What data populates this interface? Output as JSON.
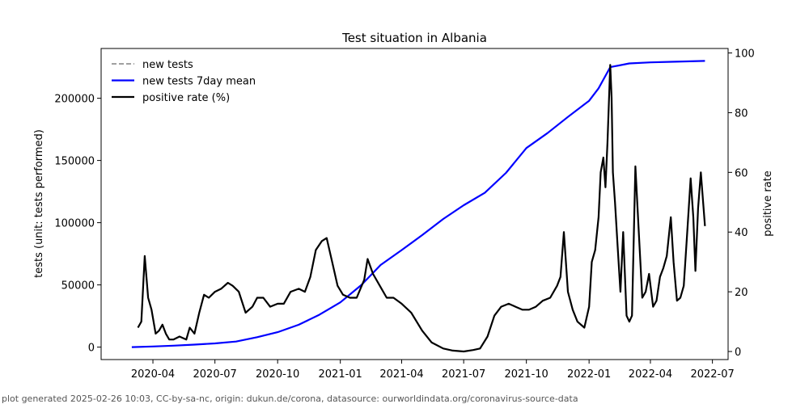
{
  "footer": "plot generated 2025-02-26 10:03, CC-by-sa-nc, origin: dukun.de/corona, datasource: ourworldindata.org/coronavirus-source-data",
  "chart_data": {
    "type": "line",
    "title": "Test situation in Albania",
    "ylabel": "tests (unit: tests performed)",
    "y2label": "positive rate",
    "ylim": [
      -10000,
      240000
    ],
    "y2lim": [
      -2.7,
      101.5
    ],
    "xlim": [
      "2020-01-16",
      "2022-07-24"
    ],
    "x_ticks": [
      "2020-04",
      "2020-07",
      "2020-10",
      "2021-01",
      "2021-04",
      "2021-07",
      "2021-10",
      "2022-01",
      "2022-04",
      "2022-07"
    ],
    "x_tick_dates": [
      "2020-04-01",
      "2020-07-01",
      "2020-10-01",
      "2021-01-01",
      "2021-04-01",
      "2021-07-01",
      "2021-10-01",
      "2022-01-01",
      "2022-04-01",
      "2022-07-01"
    ],
    "y_ticks": [
      0,
      50000,
      100000,
      150000,
      200000
    ],
    "y_tick_labels": [
      "0",
      "50000",
      "100000",
      "150000",
      "200000"
    ],
    "y2_ticks": [
      0,
      20,
      40,
      60,
      80,
      100
    ],
    "y2_tick_labels": [
      "0",
      "20",
      "40",
      "60",
      "80",
      "100"
    ],
    "legend_placement": "top-left",
    "grid": false,
    "series": [
      {
        "name": "new tests",
        "axis": "left",
        "color": "#808080",
        "style": "dashed",
        "x": [],
        "y": []
      },
      {
        "name": "new tests 7day mean",
        "axis": "left",
        "color": "#0000ff",
        "style": "solid",
        "x": [
          "2020-03-01",
          "2020-04-01",
          "2020-05-01",
          "2020-06-01",
          "2020-07-01",
          "2020-08-01",
          "2020-09-01",
          "2020-10-01",
          "2020-11-01",
          "2020-12-01",
          "2021-01-01",
          "2021-02-01",
          "2021-03-01",
          "2021-04-01",
          "2021-05-01",
          "2021-06-01",
          "2021-07-01",
          "2021-08-01",
          "2021-09-01",
          "2021-10-01",
          "2021-11-01",
          "2021-12-01",
          "2022-01-01",
          "2022-01-15",
          "2022-02-01",
          "2022-03-01",
          "2022-04-01",
          "2022-05-01",
          "2022-06-20"
        ],
        "y": [
          0,
          500,
          1200,
          2000,
          3000,
          4500,
          8000,
          12000,
          18000,
          26000,
          36000,
          50000,
          66000,
          78000,
          90000,
          103000,
          114000,
          124000,
          140000,
          160000,
          172000,
          185000,
          198000,
          208000,
          225000,
          228000,
          228800,
          229300,
          230000
        ]
      },
      {
        "name": "positive rate (%)",
        "axis": "right",
        "color": "#000000",
        "style": "solid",
        "x": [
          "2020-03-10",
          "2020-03-15",
          "2020-03-20",
          "2020-03-25",
          "2020-03-30",
          "2020-04-05",
          "2020-04-10",
          "2020-04-15",
          "2020-04-20",
          "2020-04-25",
          "2020-05-01",
          "2020-05-10",
          "2020-05-20",
          "2020-05-25",
          "2020-06-01",
          "2020-06-08",
          "2020-06-15",
          "2020-06-22",
          "2020-07-01",
          "2020-07-10",
          "2020-07-20",
          "2020-07-27",
          "2020-08-05",
          "2020-08-15",
          "2020-08-25",
          "2020-09-01",
          "2020-09-10",
          "2020-09-20",
          "2020-10-01",
          "2020-10-10",
          "2020-10-20",
          "2020-11-01",
          "2020-11-10",
          "2020-11-18",
          "2020-11-26",
          "2020-12-05",
          "2020-12-12",
          "2020-12-20",
          "2020-12-28",
          "2021-01-05",
          "2021-01-15",
          "2021-01-25",
          "2021-02-05",
          "2021-02-10",
          "2021-02-18",
          "2021-02-28",
          "2021-03-10",
          "2021-03-20",
          "2021-04-01",
          "2021-04-15",
          "2021-05-01",
          "2021-05-15",
          "2021-06-01",
          "2021-06-15",
          "2021-07-01",
          "2021-07-15",
          "2021-07-25",
          "2021-08-05",
          "2021-08-15",
          "2021-08-25",
          "2021-09-05",
          "2021-09-15",
          "2021-09-25",
          "2021-10-05",
          "2021-10-15",
          "2021-10-25",
          "2021-11-05",
          "2021-11-15",
          "2021-11-20",
          "2021-11-25",
          "2021-12-01",
          "2021-12-08",
          "2021-12-15",
          "2021-12-25",
          "2022-01-01",
          "2022-01-05",
          "2022-01-10",
          "2022-01-15",
          "2022-01-18",
          "2022-01-22",
          "2022-01-25",
          "2022-01-28",
          "2022-02-01",
          "2022-02-03",
          "2022-02-05",
          "2022-02-08",
          "2022-02-12",
          "2022-02-16",
          "2022-02-20",
          "2022-02-25",
          "2022-03-01",
          "2022-03-05",
          "2022-03-10",
          "2022-03-15",
          "2022-03-20",
          "2022-03-25",
          "2022-03-30",
          "2022-04-05",
          "2022-04-10",
          "2022-04-15",
          "2022-04-20",
          "2022-04-25",
          "2022-05-01",
          "2022-05-05",
          "2022-05-10",
          "2022-05-15",
          "2022-05-20",
          "2022-05-25",
          "2022-05-30",
          "2022-06-03",
          "2022-06-06",
          "2022-06-10",
          "2022-06-14",
          "2022-06-18",
          "2022-06-20"
        ],
        "y": [
          8,
          10,
          32,
          18,
          14,
          6,
          7,
          9,
          6,
          4,
          4,
          5,
          4,
          8,
          6,
          13,
          19,
          18,
          20,
          21,
          23,
          22,
          20,
          13,
          15,
          18,
          18,
          15,
          16,
          16,
          20,
          21,
          20,
          25,
          34,
          37,
          38,
          30,
          22,
          19,
          18,
          18,
          24,
          31,
          26,
          22,
          18,
          18,
          16,
          13,
          7,
          3,
          1,
          0.3,
          0,
          0.5,
          1,
          5,
          12,
          15,
          16,
          15,
          14,
          14,
          15,
          17,
          18,
          22,
          25,
          40,
          20,
          14,
          10,
          8,
          15,
          30,
          34,
          45,
          60,
          65,
          55,
          70,
          96,
          85,
          60,
          50,
          35,
          20,
          40,
          12,
          10,
          12,
          62,
          40,
          18,
          20,
          26,
          15,
          17,
          25,
          28,
          32,
          45,
          30,
          17,
          18,
          22,
          40,
          58,
          45,
          27,
          48,
          60,
          48,
          42
        ]
      }
    ]
  }
}
